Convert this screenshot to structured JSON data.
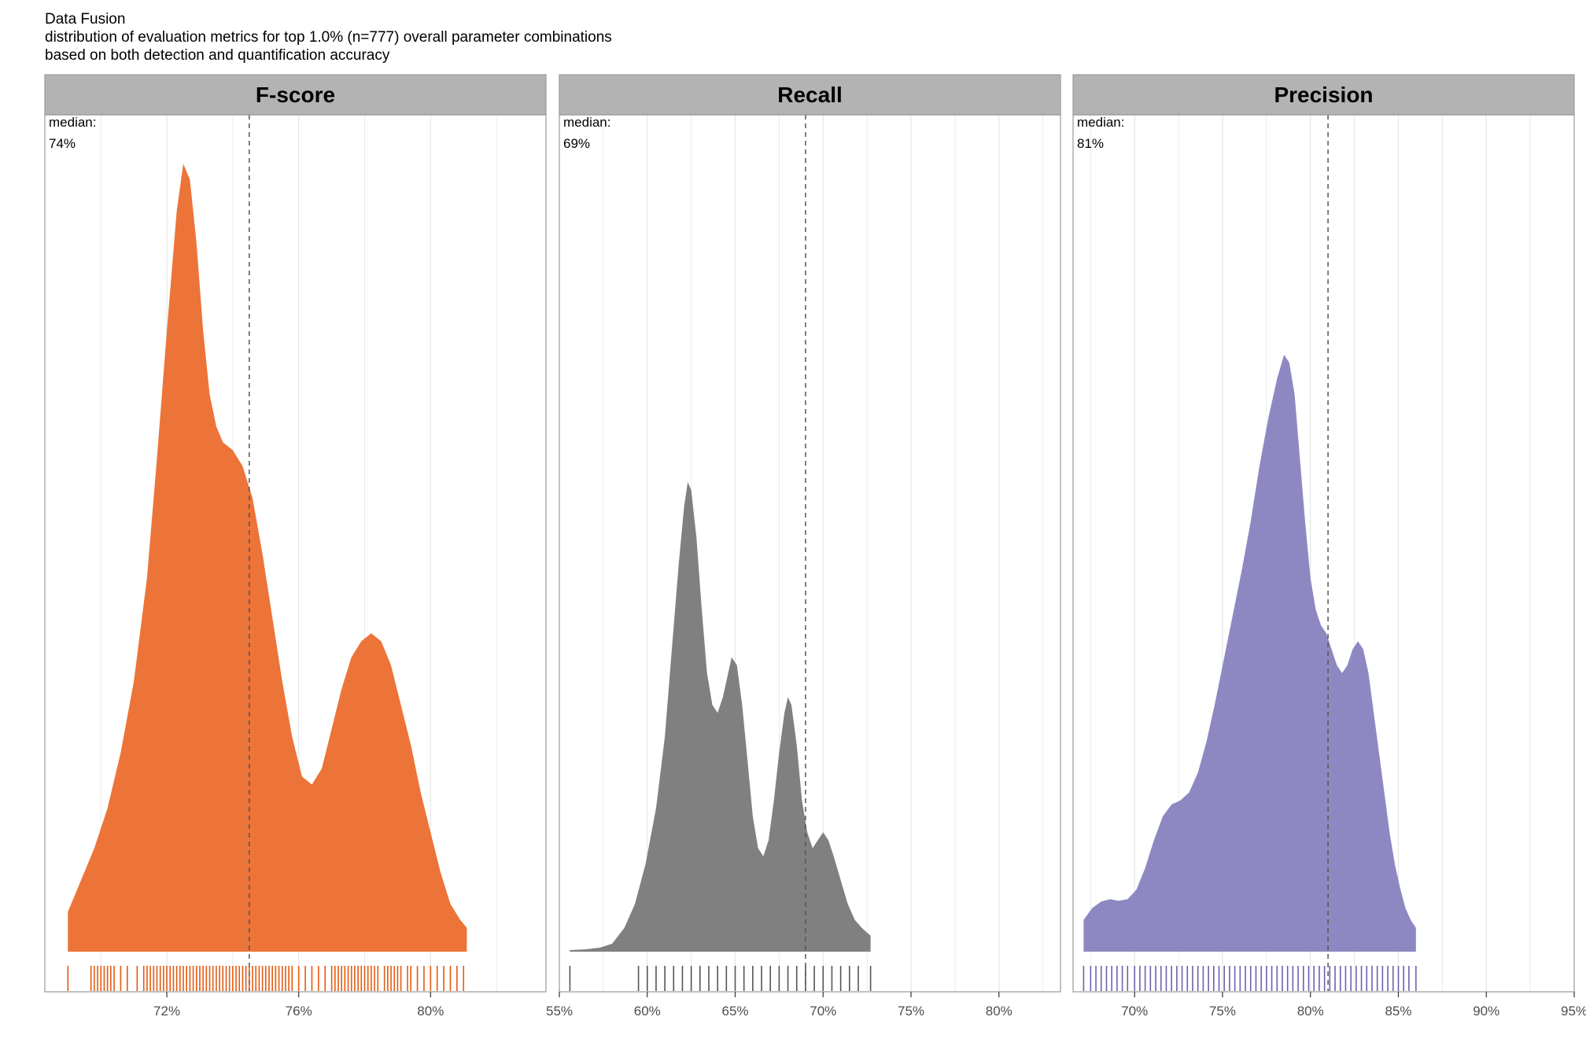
{
  "titles": {
    "line1": "Data Fusion",
    "line2": "distribution of evaluation metrics for top 1.0% (n=777) overall parameter combinations",
    "line3": "based on both detection and quantification accuracy"
  },
  "colors": {
    "strip_bg": "#b3b3b3",
    "panel_border": "#999999",
    "grid": "#e5e5e5",
    "median_line": "#555555"
  },
  "chart_data": [
    {
      "type": "area",
      "title": "F-score",
      "color": "#ec7438",
      "rug_color": "#e45a10",
      "xlim": [
        0.683,
        0.835
      ],
      "x_ticks": [
        0.72,
        0.76,
        0.8
      ],
      "tick_labels": [
        "72%",
        "76%",
        "80%"
      ],
      "median": 0.745,
      "median_label": "median:",
      "median_value": "74%",
      "density": [
        [
          0.69,
          0.05
        ],
        [
          0.694,
          0.09
        ],
        [
          0.698,
          0.13
        ],
        [
          0.702,
          0.18
        ],
        [
          0.706,
          0.25
        ],
        [
          0.71,
          0.34
        ],
        [
          0.714,
          0.47
        ],
        [
          0.717,
          0.62
        ],
        [
          0.72,
          0.78
        ],
        [
          0.723,
          0.93
        ],
        [
          0.725,
          0.99
        ],
        [
          0.727,
          0.97
        ],
        [
          0.729,
          0.89
        ],
        [
          0.731,
          0.78
        ],
        [
          0.733,
          0.7
        ],
        [
          0.735,
          0.66
        ],
        [
          0.737,
          0.64
        ],
        [
          0.74,
          0.63
        ],
        [
          0.743,
          0.61
        ],
        [
          0.746,
          0.57
        ],
        [
          0.749,
          0.5
        ],
        [
          0.752,
          0.42
        ],
        [
          0.755,
          0.34
        ],
        [
          0.758,
          0.27
        ],
        [
          0.761,
          0.22
        ],
        [
          0.764,
          0.21
        ],
        [
          0.767,
          0.23
        ],
        [
          0.77,
          0.28
        ],
        [
          0.773,
          0.33
        ],
        [
          0.776,
          0.37
        ],
        [
          0.779,
          0.39
        ],
        [
          0.782,
          0.4
        ],
        [
          0.785,
          0.39
        ],
        [
          0.788,
          0.36
        ],
        [
          0.791,
          0.31
        ],
        [
          0.794,
          0.26
        ],
        [
          0.797,
          0.2
        ],
        [
          0.8,
          0.15
        ],
        [
          0.803,
          0.1
        ],
        [
          0.806,
          0.06
        ],
        [
          0.809,
          0.04
        ],
        [
          0.811,
          0.03
        ]
      ],
      "rug": [
        0.69,
        0.697,
        0.698,
        0.699,
        0.7,
        0.701,
        0.702,
        0.703,
        0.704,
        0.706,
        0.708,
        0.711,
        0.713,
        0.714,
        0.715,
        0.716,
        0.717,
        0.718,
        0.719,
        0.72,
        0.721,
        0.722,
        0.723,
        0.724,
        0.725,
        0.726,
        0.727,
        0.728,
        0.729,
        0.73,
        0.731,
        0.732,
        0.733,
        0.734,
        0.735,
        0.736,
        0.737,
        0.738,
        0.739,
        0.74,
        0.741,
        0.742,
        0.743,
        0.744,
        0.745,
        0.746,
        0.747,
        0.748,
        0.749,
        0.75,
        0.751,
        0.752,
        0.753,
        0.754,
        0.755,
        0.756,
        0.757,
        0.758,
        0.76,
        0.762,
        0.764,
        0.766,
        0.768,
        0.77,
        0.771,
        0.772,
        0.773,
        0.774,
        0.775,
        0.776,
        0.777,
        0.778,
        0.779,
        0.78,
        0.781,
        0.782,
        0.783,
        0.784,
        0.786,
        0.787,
        0.788,
        0.789,
        0.79,
        0.791,
        0.793,
        0.794,
        0.796,
        0.798,
        0.8,
        0.802,
        0.804,
        0.806,
        0.808,
        0.81
      ]
    },
    {
      "type": "area",
      "title": "Recall",
      "color": "#808080",
      "rug_color": "#555555",
      "xlim": [
        0.55,
        0.835
      ],
      "x_ticks": [
        0.55,
        0.6,
        0.65,
        0.7,
        0.75,
        0.8
      ],
      "tick_labels": [
        "55%",
        "60%",
        "65%",
        "70%",
        "75%",
        "80%"
      ],
      "median": 0.69,
      "median_label": "median:",
      "median_value": "69%",
      "density": [
        [
          0.556,
          0.002
        ],
        [
          0.565,
          0.003
        ],
        [
          0.573,
          0.005
        ],
        [
          0.58,
          0.01
        ],
        [
          0.587,
          0.03
        ],
        [
          0.593,
          0.06
        ],
        [
          0.599,
          0.11
        ],
        [
          0.605,
          0.18
        ],
        [
          0.61,
          0.27
        ],
        [
          0.614,
          0.38
        ],
        [
          0.618,
          0.49
        ],
        [
          0.621,
          0.56
        ],
        [
          0.623,
          0.59
        ],
        [
          0.625,
          0.58
        ],
        [
          0.628,
          0.52
        ],
        [
          0.631,
          0.43
        ],
        [
          0.634,
          0.35
        ],
        [
          0.637,
          0.31
        ],
        [
          0.64,
          0.3
        ],
        [
          0.643,
          0.32
        ],
        [
          0.646,
          0.35
        ],
        [
          0.648,
          0.37
        ],
        [
          0.651,
          0.36
        ],
        [
          0.654,
          0.31
        ],
        [
          0.657,
          0.24
        ],
        [
          0.66,
          0.17
        ],
        [
          0.663,
          0.13
        ],
        [
          0.666,
          0.12
        ],
        [
          0.669,
          0.14
        ],
        [
          0.672,
          0.19
        ],
        [
          0.675,
          0.25
        ],
        [
          0.678,
          0.3
        ],
        [
          0.68,
          0.32
        ],
        [
          0.682,
          0.31
        ],
        [
          0.685,
          0.26
        ],
        [
          0.688,
          0.19
        ],
        [
          0.691,
          0.15
        ],
        [
          0.694,
          0.13
        ],
        [
          0.697,
          0.14
        ],
        [
          0.7,
          0.15
        ],
        [
          0.703,
          0.14
        ],
        [
          0.706,
          0.12
        ],
        [
          0.71,
          0.09
        ],
        [
          0.714,
          0.06
        ],
        [
          0.718,
          0.04
        ],
        [
          0.722,
          0.03
        ],
        [
          0.727,
          0.02
        ]
      ],
      "rug": [
        0.556,
        0.595,
        0.6,
        0.605,
        0.61,
        0.615,
        0.62,
        0.625,
        0.63,
        0.635,
        0.64,
        0.645,
        0.65,
        0.655,
        0.66,
        0.665,
        0.67,
        0.675,
        0.68,
        0.685,
        0.69,
        0.695,
        0.7,
        0.705,
        0.71,
        0.715,
        0.72,
        0.727
      ]
    },
    {
      "type": "area",
      "title": "Precision",
      "color": "#8e88c2",
      "rug_color": "#6a63ad",
      "xlim": [
        0.665,
        0.95
      ],
      "x_ticks": [
        0.7,
        0.75,
        0.8,
        0.85,
        0.9,
        0.95
      ],
      "tick_labels": [
        "70%",
        "75%",
        "80%",
        "85%",
        "90%",
        "95%"
      ],
      "median": 0.81,
      "median_label": "median:",
      "median_value": "81%",
      "density": [
        [
          0.671,
          0.04
        ],
        [
          0.676,
          0.055
        ],
        [
          0.681,
          0.063
        ],
        [
          0.686,
          0.066
        ],
        [
          0.691,
          0.064
        ],
        [
          0.696,
          0.066
        ],
        [
          0.701,
          0.078
        ],
        [
          0.706,
          0.105
        ],
        [
          0.711,
          0.14
        ],
        [
          0.716,
          0.17
        ],
        [
          0.721,
          0.185
        ],
        [
          0.726,
          0.19
        ],
        [
          0.731,
          0.2
        ],
        [
          0.736,
          0.225
        ],
        [
          0.741,
          0.265
        ],
        [
          0.746,
          0.315
        ],
        [
          0.751,
          0.37
        ],
        [
          0.756,
          0.425
        ],
        [
          0.761,
          0.48
        ],
        [
          0.766,
          0.54
        ],
        [
          0.771,
          0.61
        ],
        [
          0.776,
          0.67
        ],
        [
          0.781,
          0.72
        ],
        [
          0.785,
          0.75
        ],
        [
          0.788,
          0.74
        ],
        [
          0.791,
          0.7
        ],
        [
          0.794,
          0.62
        ],
        [
          0.797,
          0.54
        ],
        [
          0.8,
          0.47
        ],
        [
          0.803,
          0.43
        ],
        [
          0.806,
          0.41
        ],
        [
          0.809,
          0.4
        ],
        [
          0.812,
          0.38
        ],
        [
          0.815,
          0.36
        ],
        [
          0.818,
          0.35
        ],
        [
          0.821,
          0.36
        ],
        [
          0.824,
          0.38
        ],
        [
          0.827,
          0.39
        ],
        [
          0.83,
          0.38
        ],
        [
          0.833,
          0.35
        ],
        [
          0.836,
          0.3
        ],
        [
          0.839,
          0.25
        ],
        [
          0.842,
          0.2
        ],
        [
          0.845,
          0.15
        ],
        [
          0.848,
          0.11
        ],
        [
          0.851,
          0.08
        ],
        [
          0.854,
          0.055
        ],
        [
          0.857,
          0.04
        ],
        [
          0.86,
          0.03
        ]
      ],
      "rug": [
        0.671,
        0.675,
        0.678,
        0.681,
        0.684,
        0.687,
        0.69,
        0.693,
        0.696,
        0.7,
        0.703,
        0.706,
        0.709,
        0.712,
        0.715,
        0.718,
        0.721,
        0.724,
        0.727,
        0.73,
        0.733,
        0.736,
        0.739,
        0.742,
        0.745,
        0.748,
        0.751,
        0.754,
        0.757,
        0.76,
        0.763,
        0.766,
        0.769,
        0.772,
        0.775,
        0.778,
        0.781,
        0.784,
        0.787,
        0.79,
        0.793,
        0.796,
        0.799,
        0.802,
        0.805,
        0.808,
        0.811,
        0.814,
        0.817,
        0.82,
        0.823,
        0.826,
        0.829,
        0.832,
        0.835,
        0.838,
        0.841,
        0.844,
        0.847,
        0.85,
        0.853,
        0.856,
        0.86
      ]
    }
  ]
}
